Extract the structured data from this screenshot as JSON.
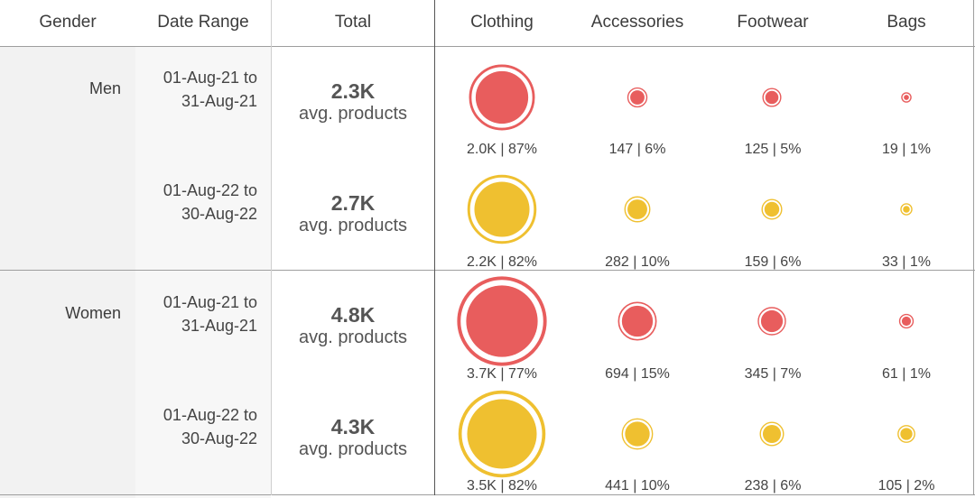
{
  "columns": {
    "gender": "Gender",
    "date_range": "Date Range",
    "total": "Total",
    "categories": [
      "Clothing",
      "Accessories",
      "Footwear",
      "Bags"
    ]
  },
  "colors": {
    "period1": "#e85d5d",
    "period2": "#efc030"
  },
  "chart_data": {
    "type": "table",
    "groups": [
      {
        "gender": "Men",
        "rows": [
          {
            "range_start": "01-Aug-21 to",
            "range_end": "31-Aug-21",
            "total": "2.3K",
            "total_label": "avg. products",
            "values": [
              2000,
              147,
              125,
              19
            ],
            "shares": [
              87,
              6,
              5,
              1
            ],
            "labels": [
              "2.0K | 87%",
              "147 | 6%",
              "125 | 5%",
              "19 | 1%"
            ]
          },
          {
            "range_start": "01-Aug-22 to",
            "range_end": "30-Aug-22",
            "total": "2.7K",
            "total_label": "avg. products",
            "values": [
              2200,
              282,
              159,
              33
            ],
            "shares": [
              82,
              10,
              6,
              1
            ],
            "labels": [
              "2.2K | 82%",
              "282 | 10%",
              "159 | 6%",
              "33 | 1%"
            ]
          }
        ]
      },
      {
        "gender": "Women",
        "rows": [
          {
            "range_start": "01-Aug-21 to",
            "range_end": "31-Aug-21",
            "total": "4.8K",
            "total_label": "avg. products",
            "values": [
              3700,
              694,
              345,
              61
            ],
            "shares": [
              77,
              15,
              7,
              1
            ],
            "labels": [
              "3.7K | 77%",
              "694 | 15%",
              "345 | 7%",
              "61 | 1%"
            ]
          },
          {
            "range_start": "01-Aug-22 to",
            "range_end": "30-Aug-22",
            "total": "4.3K",
            "total_label": "avg. products",
            "values": [
              3500,
              441,
              238,
              105
            ],
            "shares": [
              82,
              10,
              6,
              2
            ],
            "labels": [
              "3.5K | 82%",
              "441 | 10%",
              "238 | 6%",
              "105 | 2%"
            ]
          }
        ]
      }
    ]
  }
}
